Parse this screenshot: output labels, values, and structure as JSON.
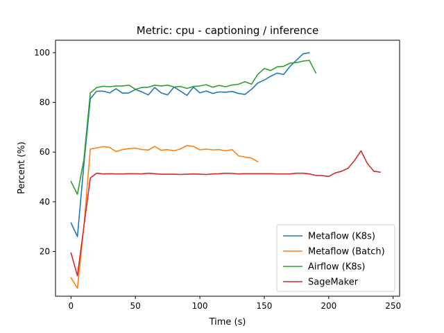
{
  "chart_data": {
    "type": "line",
    "title": "Metric: cpu - captioning / inference",
    "xlabel": "Time (s)",
    "ylabel": "Percent (%)",
    "xlim": [
      -12,
      255
    ],
    "ylim": [
      2,
      105
    ],
    "xticks": [
      0,
      50,
      100,
      150,
      200,
      250
    ],
    "yticks": [
      20,
      40,
      60,
      80,
      100
    ],
    "grid": false,
    "legend_position": "lower right",
    "series": [
      {
        "name": "Metaflow (K8s)",
        "color": "#1f77b4",
        "x": [
          0,
          5,
          10,
          15,
          20,
          25,
          30,
          35,
          40,
          45,
          50,
          55,
          60,
          65,
          70,
          75,
          80,
          85,
          90,
          95,
          100,
          105,
          110,
          115,
          120,
          125,
          130,
          135,
          140,
          145,
          150,
          155,
          160,
          165,
          170,
          175,
          180,
          185
        ],
        "y": [
          31.5,
          26,
          55,
          81.5,
          84.5,
          84.5,
          83.8,
          85.5,
          83.7,
          83.8,
          85.2,
          84.2,
          83.0,
          86.0,
          83.8,
          83.0,
          86.2,
          84.5,
          82.8,
          86.2,
          83.8,
          84.6,
          83.6,
          84.2,
          84.1,
          84.4,
          83.6,
          83.2,
          85.2,
          87.8,
          89.0,
          90.5,
          91.8,
          91.2,
          94.5,
          97.0,
          99.5,
          100.0
        ]
      },
      {
        "name": "Metaflow (Batch)",
        "color": "#ff7f0e",
        "x": [
          0,
          5,
          10,
          15,
          20,
          25,
          30,
          35,
          40,
          45,
          50,
          55,
          60,
          65,
          70,
          75,
          80,
          85,
          90,
          95,
          100,
          105,
          110,
          115,
          120,
          125,
          130,
          135,
          140,
          145
        ],
        "y": [
          9.5,
          5.2,
          30,
          61.2,
          61.7,
          62.2,
          61.9,
          60.2,
          61.0,
          61.4,
          61.6,
          61.0,
          60.8,
          62.3,
          60.7,
          61.0,
          60.5,
          61.3,
          62.6,
          62.3,
          60.9,
          61.2,
          60.9,
          61.0,
          60.5,
          61.0,
          58.5,
          58.0,
          57.6,
          56.1
        ]
      },
      {
        "name": "Airflow (K8s)",
        "color": "#2ca02c",
        "x": [
          0,
          5,
          10,
          15,
          20,
          25,
          30,
          35,
          40,
          45,
          50,
          55,
          60,
          65,
          70,
          75,
          80,
          85,
          90,
          95,
          100,
          105,
          110,
          115,
          120,
          125,
          130,
          135,
          140,
          145,
          150,
          155,
          160,
          165,
          170,
          175,
          180,
          185,
          190
        ],
        "y": [
          48.2,
          43,
          57,
          83.8,
          86.0,
          86.5,
          86.3,
          86.6,
          86.6,
          86.9,
          85.3,
          86.0,
          86.1,
          86.9,
          86.6,
          86.9,
          86.2,
          86.4,
          85.6,
          86.4,
          86.6,
          87.1,
          86.1,
          86.8,
          86.3,
          87.0,
          87.3,
          88.3,
          87.3,
          91.3,
          93.6,
          92.8,
          94.3,
          94.5,
          95.8,
          96.0,
          96.6,
          96.9,
          91.8
        ]
      },
      {
        "name": "SageMaker",
        "color": "#d62728",
        "x": [
          0,
          5,
          10,
          15,
          20,
          25,
          30,
          35,
          40,
          45,
          50,
          55,
          60,
          65,
          70,
          75,
          80,
          85,
          90,
          95,
          100,
          105,
          110,
          115,
          120,
          125,
          130,
          135,
          140,
          145,
          150,
          155,
          160,
          165,
          170,
          175,
          180,
          185,
          190,
          195,
          200,
          205,
          210,
          215,
          220,
          225,
          230,
          235,
          240
        ],
        "y": [
          19.5,
          10.2,
          30,
          49.6,
          51.5,
          51.2,
          51.3,
          51.2,
          51.2,
          51.3,
          51.3,
          51.2,
          51.5,
          51.3,
          51.1,
          51.1,
          51.1,
          51.0,
          51.1,
          51.2,
          51.1,
          51.0,
          51.2,
          51.3,
          51.5,
          51.4,
          51.2,
          51.3,
          51.3,
          51.3,
          51.3,
          51.3,
          51.2,
          51.2,
          51.2,
          51.5,
          51.5,
          51.2,
          50.6,
          50.5,
          50.2,
          51.6,
          52.3,
          53.5,
          56.6,
          60.5,
          55.4,
          52.3,
          51.9
        ]
      }
    ]
  }
}
